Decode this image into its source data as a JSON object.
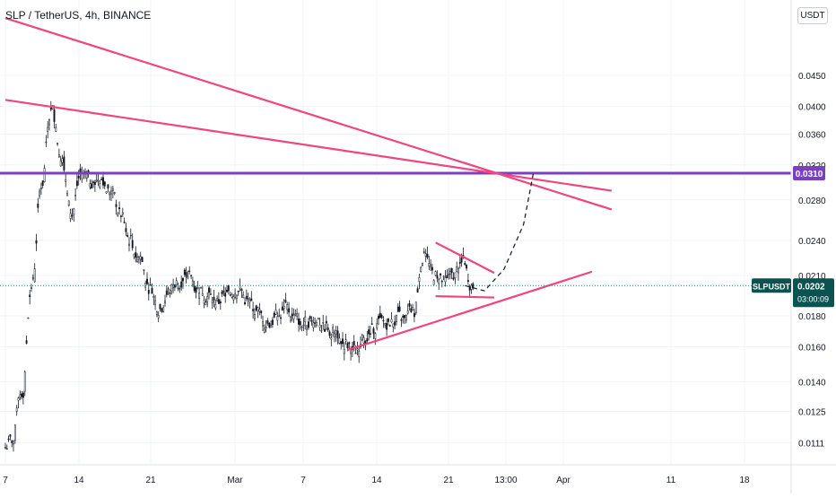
{
  "header": {
    "title": "SLP / TetherUS, 4h, BINANCE",
    "currency": "USDT"
  },
  "colors": {
    "trendline": "#f0457e",
    "level": "#7b3fc4",
    "candle": "#131722",
    "grid": "#f0f3fa",
    "price_line": "#1f8c7e",
    "symbol_badge": "#0b5351"
  },
  "chart_data": {
    "type": "candlestick",
    "title": "SLP / TetherUS, 4h, BINANCE",
    "xlabel": "",
    "ylabel": "",
    "y_scale": "log",
    "grid": true,
    "y_ticks": [
      "0.0450",
      "0.0400",
      "0.0360",
      "0.0320",
      "0.0280",
      "0.0240",
      "0.0210",
      "0.0180",
      "0.0160",
      "0.0140",
      "0.0125",
      "0.0111"
    ],
    "x_ticks": [
      "7",
      "14",
      "21",
      "Mar",
      "7",
      "14",
      "21",
      "13:00",
      "Apr",
      "11",
      "18"
    ],
    "series": [
      {
        "x": [
          "Feb 7",
          "Feb 8",
          "Feb 9",
          "Feb 10",
          "Feb 11",
          "Feb 12",
          "Feb 13",
          "Feb 14",
          "Feb 15",
          "Feb 16",
          "Feb 17",
          "Feb 18",
          "Feb 19",
          "Feb 20",
          "Feb 21",
          "Feb 22",
          "Feb 23",
          "Feb 24",
          "Feb 25",
          "Feb 26",
          "Feb 27",
          "Feb 28",
          "Mar 1",
          "Mar 2",
          "Mar 3",
          "Mar 4",
          "Mar 5",
          "Mar 6",
          "Mar 7",
          "Mar 8",
          "Mar 9",
          "Mar 10",
          "Mar 11",
          "Mar 12",
          "Mar 13",
          "Mar 14",
          "Mar 15",
          "Mar 16",
          "Mar 17",
          "Mar 18",
          "Mar 19",
          "Mar 20",
          "Mar 21",
          "Mar 22",
          "Mar 23",
          "Mar 24",
          "Mar 25",
          "Mar 26"
        ],
        "close": [
          0.0112,
          0.0135,
          0.0205,
          0.03,
          0.0395,
          0.033,
          0.0265,
          0.031,
          0.03,
          0.0305,
          0.029,
          0.0265,
          0.024,
          0.0225,
          0.02,
          0.0185,
          0.0198,
          0.0205,
          0.021,
          0.02,
          0.0195,
          0.019,
          0.0195,
          0.02,
          0.019,
          0.0183,
          0.0175,
          0.018,
          0.0185,
          0.0178,
          0.0176,
          0.0178,
          0.0172,
          0.017,
          0.0162,
          0.0158,
          0.0165,
          0.0172,
          0.0175,
          0.0176,
          0.0177,
          0.0182,
          0.0226,
          0.021,
          0.0205,
          0.0208,
          0.022,
          0.0202
        ]
      }
    ],
    "annotations": {
      "horizontal_level": 0.031,
      "trendlines": [
        {
          "from": [
            "Feb 7",
            0.056
          ],
          "to": [
            "Apr 10",
            0.027
          ]
        },
        {
          "from": [
            "Feb 7",
            0.041
          ],
          "to": [
            "Apr 10",
            0.029
          ]
        },
        {
          "from": [
            "Mar 14",
            0.0158
          ],
          "to": [
            "Apr 8",
            0.0213
          ]
        },
        {
          "from": [
            "Mar 23",
            0.0238
          ],
          "to": [
            "Mar 29",
            0.0212
          ]
        },
        {
          "from": [
            "Mar 23",
            0.0194
          ],
          "to": [
            "Mar 29",
            0.0193
          ]
        }
      ],
      "projection": [
        [
          "Mar 26",
          0.0202
        ],
        [
          "Mar 28",
          0.0198
        ],
        [
          "Mar 30",
          0.0215
        ],
        [
          "Apr 1",
          0.0255
        ],
        [
          "Apr 2",
          0.031
        ]
      ]
    },
    "last_price": {
      "value": "0.0202",
      "symbol": "SLPUSDT",
      "countdown": "03:00:09"
    },
    "level_label": "0.0310"
  }
}
